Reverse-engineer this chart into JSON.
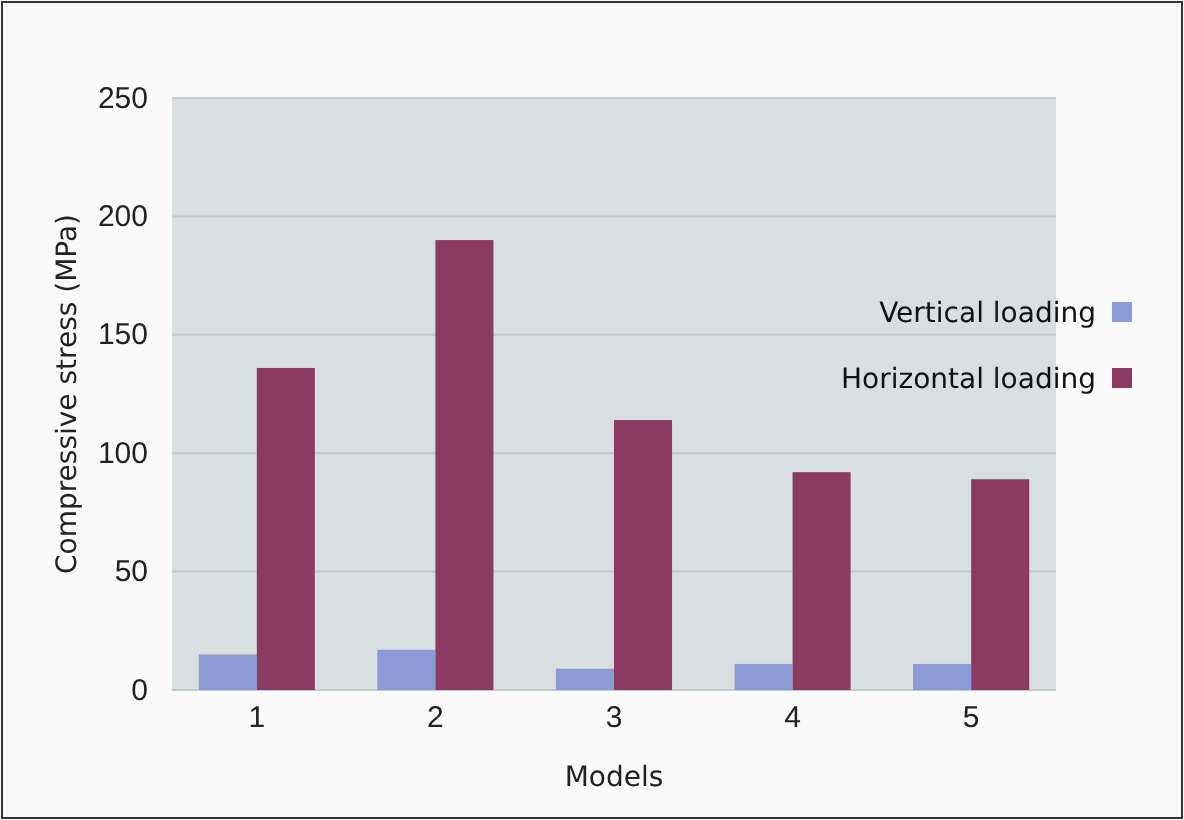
{
  "chart_data": {
    "type": "bar",
    "xlabel": "Models",
    "ylabel": "Compressive stress (MPa)",
    "categories": [
      "1",
      "2",
      "3",
      "4",
      "5"
    ],
    "series": [
      {
        "name": "Vertical loading",
        "color": "#8a9bd6",
        "values": [
          15,
          17,
          9,
          11,
          11
        ]
      },
      {
        "name": "Horizontal loading",
        "color": "#8b3a62",
        "values": [
          136,
          190,
          114,
          92,
          89
        ]
      }
    ],
    "ylim": [
      0,
      250
    ],
    "yticks": [
      0,
      50,
      100,
      150,
      200,
      250
    ],
    "grid": "y",
    "legend": "right"
  }
}
